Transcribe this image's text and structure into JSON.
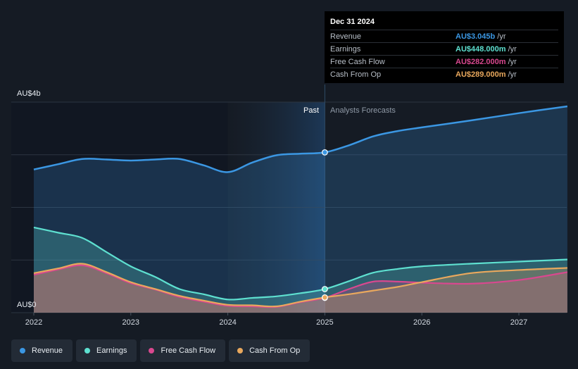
{
  "chart_data": {
    "type": "area",
    "y_max_label": "AU$4b",
    "y_min_label": "AU$0",
    "ylim": [
      0,
      4
    ],
    "xlim": [
      2022,
      2027.5
    ],
    "x_ticks": [
      "2022",
      "2023",
      "2024",
      "2025",
      "2026",
      "2027"
    ],
    "past_label": "Past",
    "forecast_label": "Analysts Forecasts",
    "divider_x": 2025,
    "series": [
      {
        "name": "Revenue",
        "color": "#3b97e3",
        "x": [
          2022,
          2022.25,
          2022.5,
          2022.75,
          2023,
          2023.25,
          2023.5,
          2023.75,
          2024,
          2024.25,
          2024.5,
          2024.75,
          2025,
          2025.25,
          2025.5,
          2025.75,
          2026,
          2026.5,
          2027,
          2027.5
        ],
        "y": [
          2.72,
          2.82,
          2.92,
          2.91,
          2.89,
          2.91,
          2.92,
          2.8,
          2.67,
          2.85,
          2.99,
          3.02,
          3.045,
          3.18,
          3.35,
          3.45,
          3.52,
          3.65,
          3.79,
          3.92
        ]
      },
      {
        "name": "Earnings",
        "color": "#5ee0d0",
        "x": [
          2022,
          2022.25,
          2022.5,
          2022.75,
          2023,
          2023.25,
          2023.5,
          2023.75,
          2024,
          2024.25,
          2024.5,
          2024.75,
          2025,
          2025.25,
          2025.5,
          2025.75,
          2026,
          2026.5,
          2027,
          2027.5
        ],
        "y": [
          1.62,
          1.52,
          1.42,
          1.15,
          0.88,
          0.68,
          0.45,
          0.35,
          0.25,
          0.28,
          0.31,
          0.37,
          0.448,
          0.6,
          0.76,
          0.83,
          0.88,
          0.93,
          0.97,
          1.01
        ]
      },
      {
        "name": "Free Cash Flow",
        "color": "#d9488f",
        "x": [
          2022,
          2022.25,
          2022.5,
          2022.75,
          2023,
          2023.25,
          2023.5,
          2023.75,
          2024,
          2024.25,
          2024.5,
          2024.75,
          2025,
          2025.25,
          2025.5,
          2025.75,
          2026,
          2026.5,
          2027,
          2027.5
        ],
        "y": [
          0.72,
          0.82,
          0.9,
          0.75,
          0.56,
          0.44,
          0.3,
          0.21,
          0.13,
          0.12,
          0.11,
          0.2,
          0.282,
          0.45,
          0.59,
          0.59,
          0.57,
          0.55,
          0.62,
          0.77
        ]
      },
      {
        "name": "Cash From Op",
        "color": "#e9a85d",
        "x": [
          2022,
          2022.25,
          2022.5,
          2022.75,
          2023,
          2023.25,
          2023.5,
          2023.75,
          2024,
          2024.25,
          2024.5,
          2024.75,
          2025,
          2025.25,
          2025.5,
          2025.75,
          2026,
          2026.5,
          2027,
          2027.5
        ],
        "y": [
          0.75,
          0.84,
          0.93,
          0.77,
          0.58,
          0.45,
          0.32,
          0.23,
          0.15,
          0.14,
          0.12,
          0.21,
          0.289,
          0.35,
          0.42,
          0.49,
          0.58,
          0.75,
          0.81,
          0.85
        ]
      }
    ]
  },
  "tooltip": {
    "date": "Dec 31 2024",
    "rows": [
      {
        "label": "Revenue",
        "value": "AU$3.045b",
        "unit": "/yr",
        "color": "#3b97e3"
      },
      {
        "label": "Earnings",
        "value": "AU$448.000m",
        "unit": "/yr",
        "color": "#5ee0d0"
      },
      {
        "label": "Free Cash Flow",
        "value": "AU$282.000m",
        "unit": "/yr",
        "color": "#d9488f"
      },
      {
        "label": "Cash From Op",
        "value": "AU$289.000m",
        "unit": "/yr",
        "color": "#e9a85d"
      }
    ]
  },
  "legend": [
    {
      "label": "Revenue",
      "color": "#3b97e3"
    },
    {
      "label": "Earnings",
      "color": "#5ee0d0"
    },
    {
      "label": "Free Cash Flow",
      "color": "#d9488f"
    },
    {
      "label": "Cash From Op",
      "color": "#e9a85d"
    }
  ]
}
